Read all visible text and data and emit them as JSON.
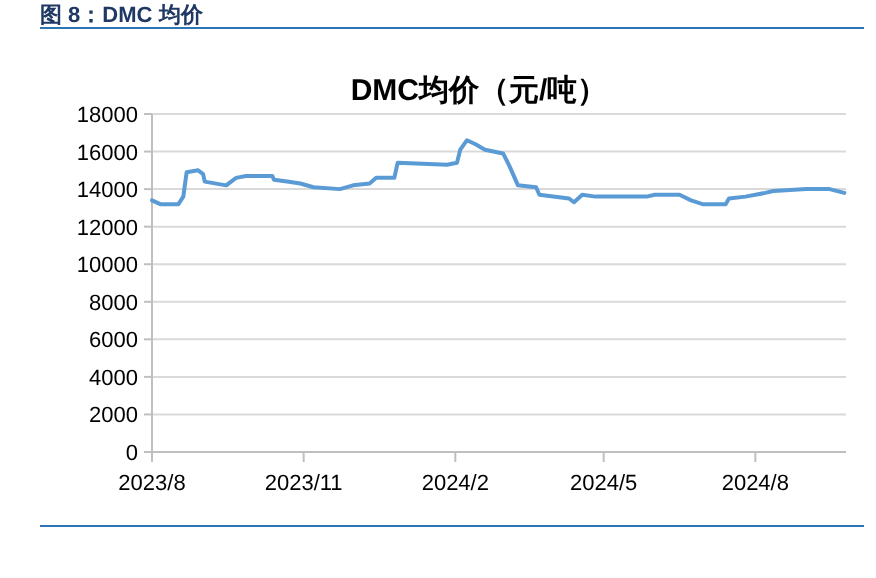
{
  "chart_data": {
    "type": "line",
    "title": "DMC均价（元/吨）",
    "annotations": [
      "图 8：DMC 均价"
    ],
    "x": [
      "2023-08-01",
      "2023-08-06",
      "2023-08-12",
      "2023-08-17",
      "2023-08-20",
      "2023-08-22",
      "2023-08-29",
      "2023-09-01",
      "2023-09-02",
      "2023-09-15",
      "2023-09-21",
      "2023-09-27",
      "2023-10-13",
      "2023-10-14",
      "2023-10-22",
      "2023-10-30",
      "2023-11-07",
      "2023-11-23",
      "2023-12-01",
      "2023-12-11",
      "2023-12-15",
      "2023-12-26",
      "2023-12-28",
      "2024-01-27",
      "2024-02-02",
      "2024-02-04",
      "2024-02-08",
      "2024-02-13",
      "2024-02-19",
      "2024-03-01",
      "2024-03-05",
      "2024-03-10",
      "2024-03-21",
      "2024-03-23",
      "2024-04-10",
      "2024-04-13",
      "2024-04-18",
      "2024-04-26",
      "2024-05-27",
      "2024-06-01",
      "2024-06-16",
      "2024-06-23",
      "2024-06-30",
      "2024-07-14",
      "2024-07-16",
      "2024-07-26",
      "2024-08-07",
      "2024-08-12",
      "2024-09-01",
      "2024-09-15",
      "2024-09-24"
    ],
    "series": [
      {
        "color": "#5b9bd5",
        "values": [
          13400,
          13200,
          13200,
          13200,
          13600,
          14900,
          15000,
          14800,
          14400,
          14200,
          14600,
          14700,
          14700,
          14500,
          14400,
          14300,
          14100,
          14000,
          14200,
          14300,
          14600,
          14600,
          15400,
          15300,
          15400,
          16100,
          16600,
          16400,
          16100,
          15900,
          15200,
          14200,
          14100,
          13700,
          13500,
          13300,
          13700,
          13600,
          13600,
          13700,
          13700,
          13400,
          13200,
          13200,
          13500,
          13600,
          13800,
          13900,
          14000,
          14000,
          13800
        ]
      }
    ],
    "xlim": [
      "2023-08-01",
      "2024-09-25"
    ],
    "xticks": [
      {
        "value": "2023-08-01",
        "label": "2023/8"
      },
      {
        "value": "2023-11-01",
        "label": "2023/11"
      },
      {
        "value": "2024-02-01",
        "label": "2024/2"
      },
      {
        "value": "2024-05-01",
        "label": "2024/5"
      },
      {
        "value": "2024-08-01",
        "label": "2024/8"
      }
    ],
    "ylim": [
      0,
      18000
    ],
    "yticks": [
      0,
      2000,
      4000,
      6000,
      8000,
      10000,
      12000,
      14000,
      16000,
      18000
    ],
    "grid": "y",
    "marker": "none",
    "line_style": "solid"
  }
}
